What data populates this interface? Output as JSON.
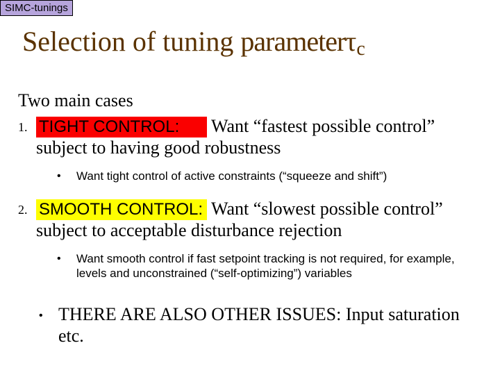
{
  "tag": {
    "text": "SIMC-tunings",
    "bg": "#b6a4dc"
  },
  "title": {
    "prefix": "Selection of tuning ",
    "param_word": "parameter",
    "tau": "τ",
    "sub": "c",
    "color": "#5a3200"
  },
  "subhead": "Two main cases",
  "items": [
    {
      "num": "1.",
      "highlight": "TIGHT CONTROL:",
      "highlight_bg": "#fa0000",
      "text_after": " Want “fastest possible control” subject to having good robustness",
      "sub": "Want tight control of active constraints (“squeeze and shift”)"
    },
    {
      "num": "2.",
      "highlight": "SMOOTH CONTROL:",
      "highlight_bg": "#fefe00",
      "text_after": "  Want “slowest possible control” subject to acceptable disturbance rejection",
      "sub": "Want smooth control if fast setpoint tracking is not required, for example, levels and unconstrained (“self-optimizing”) variables"
    }
  ],
  "final": "THERE ARE ALSO OTHER ISSUES: Input saturation etc."
}
